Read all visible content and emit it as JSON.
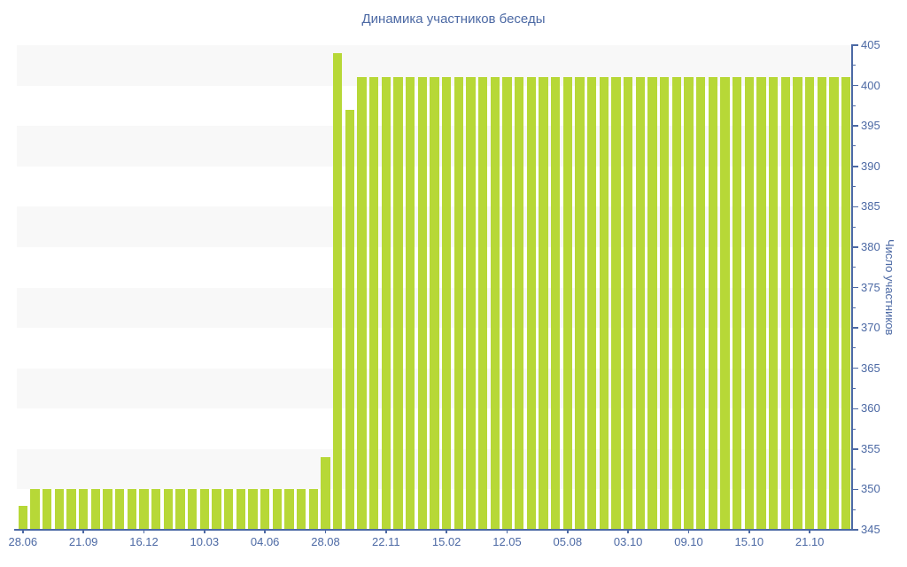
{
  "title": "Динамика участников беседы",
  "colors": {
    "bar": "#b7d837",
    "axis": "#4c69a4",
    "text": "#4c69a4",
    "band": "#f8f8f8",
    "background": "#ffffff"
  },
  "chart_data": {
    "type": "bar",
    "title": "Динамика участников беседы",
    "xlabel": "",
    "ylabel": "Число участников",
    "ylim": [
      345,
      405
    ],
    "y_major_ticks": [
      345,
      350,
      355,
      360,
      365,
      370,
      375,
      380,
      385,
      390,
      395,
      400,
      405
    ],
    "y_minor_tick_step": 2.5,
    "grid": "alternating-horizontal-bands",
    "legend": "none",
    "x_tick_step": 5,
    "x_tick_labels": [
      "28.06",
      "21.09",
      "16.12",
      "10.03",
      "04.06",
      "28.08",
      "22.11",
      "15.02",
      "12.05",
      "05.08",
      "03.10",
      "09.10",
      "15.10",
      "21.10"
    ],
    "values": [
      348,
      350,
      350,
      350,
      350,
      350,
      350,
      350,
      350,
      350,
      350,
      350,
      350,
      350,
      350,
      350,
      350,
      350,
      350,
      350,
      350,
      350,
      350,
      350,
      350,
      354,
      404,
      397,
      401,
      401,
      401,
      401,
      401,
      401,
      401,
      401,
      401,
      401,
      401,
      401,
      401,
      401,
      401,
      401,
      401,
      401,
      401,
      401,
      401,
      401,
      401,
      401,
      401,
      401,
      401,
      401,
      401,
      401,
      401,
      401,
      401,
      401,
      401,
      401,
      401,
      401,
      401,
      401,
      401
    ]
  }
}
